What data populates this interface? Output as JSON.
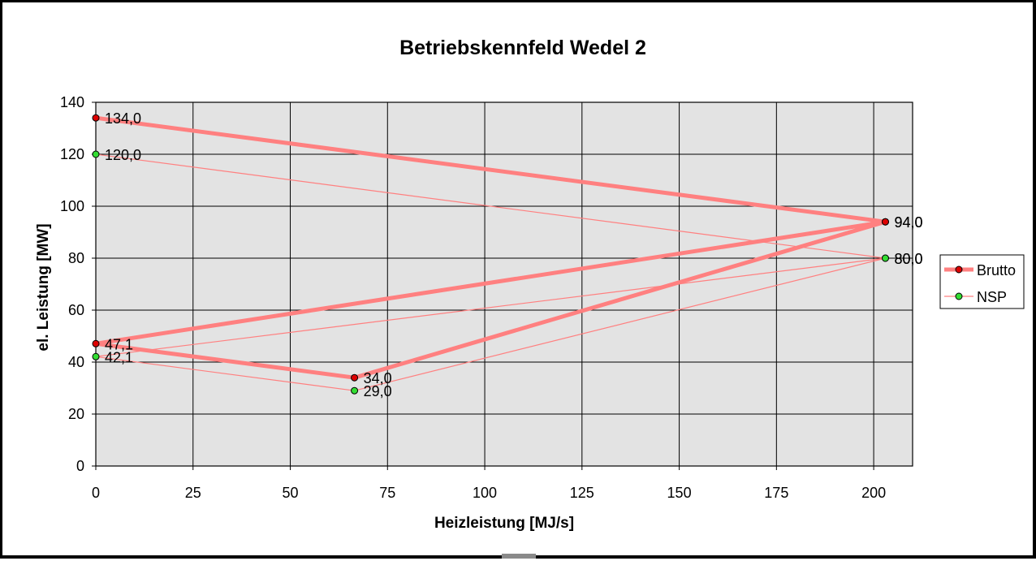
{
  "chart_data": {
    "type": "line",
    "title": "Betriebskennfeld Wedel 2",
    "xlabel": "Heizleistung [MJ/s]",
    "ylabel": "el. Leistung [MW]",
    "xlim": [
      0,
      210
    ],
    "ylim": [
      0,
      140
    ],
    "xticks": [
      "0",
      "25",
      "50",
      "75",
      "100",
      "125",
      "150",
      "175",
      "200"
    ],
    "yticks": [
      "0",
      "20",
      "40",
      "60",
      "80",
      "100",
      "120",
      "140"
    ],
    "grid": true,
    "legend_position": "right",
    "series": [
      {
        "name": "Brutto",
        "color": "#ff8080",
        "marker_color": "#dd0000",
        "line_width": "thick",
        "points": [
          {
            "x": 0,
            "y": 134.0,
            "label": "134,0"
          },
          {
            "x": 203,
            "y": 94.0,
            "label": "94,0"
          },
          {
            "x": 0,
            "y": 47.1,
            "label": "47,1"
          },
          {
            "x": 66.5,
            "y": 34.0,
            "label": "34,0"
          },
          {
            "x": 203,
            "y": 94.0,
            "label": "94,0"
          }
        ]
      },
      {
        "name": "NSP",
        "color": "#ff8080",
        "marker_color": "#33dd33",
        "line_width": "thin",
        "points": [
          {
            "x": 0,
            "y": 120.0,
            "label": "120,0"
          },
          {
            "x": 203,
            "y": 80.0,
            "label": "80,0"
          },
          {
            "x": 0,
            "y": 42.1,
            "label": "42,1"
          },
          {
            "x": 66.5,
            "y": 29.0,
            "label": "29,0"
          },
          {
            "x": 203,
            "y": 80.0,
            "label": "80,0"
          }
        ]
      }
    ],
    "colors": {
      "plot_background": "#e3e3e3",
      "grid": "#000000"
    }
  }
}
